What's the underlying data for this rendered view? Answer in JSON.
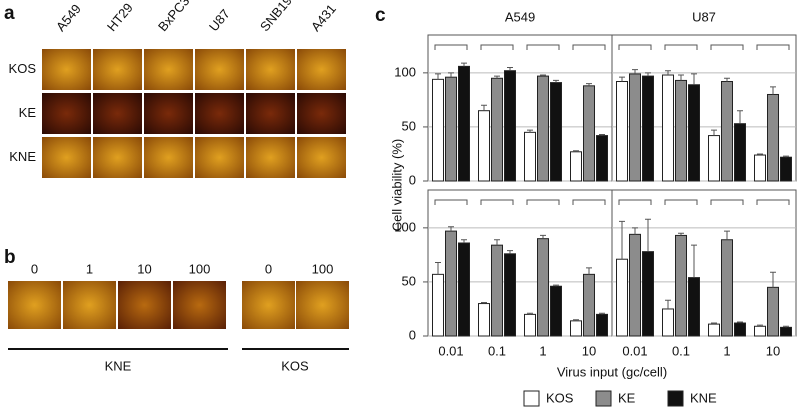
{
  "panel_labels": [
    "a",
    "b",
    "c"
  ],
  "panel_a": {
    "columns": [
      "A549",
      "HT29",
      "BxPC3",
      "U87",
      "SNB19",
      "A431"
    ],
    "rows": [
      "KOS",
      "KE",
      "KNE"
    ]
  },
  "panel_b": {
    "doses": [
      "0",
      "1",
      "10",
      "100",
      "0",
      "100"
    ],
    "groups": [
      "KNE",
      "KOS"
    ]
  },
  "figure_c": {
    "ylabel": "Cell viability (%)",
    "xlabel": "Virus input (gc/cell)",
    "legend": [
      {
        "name": "KOS",
        "color": "#ffffff"
      },
      {
        "name": "KE",
        "color": "#8c8c8c"
      },
      {
        "name": "KNE",
        "color": "#111111"
      }
    ]
  },
  "chart_data": [
    {
      "type": "bar",
      "title": "A549",
      "ylim": [
        0,
        135
      ],
      "yticks": [
        0,
        50,
        100
      ],
      "grid": true,
      "series": [
        {
          "values": [
            94,
            65,
            45,
            27
          ],
          "errors": [
            5,
            5,
            2,
            1
          ]
        },
        {
          "values": [
            96,
            95,
            97,
            88
          ],
          "errors": [
            4,
            2,
            1,
            2
          ]
        },
        {
          "values": [
            106,
            102,
            91,
            42
          ],
          "errors": [
            3,
            3,
            2,
            1
          ]
        }
      ]
    },
    {
      "type": "bar",
      "title": "U87",
      "ylim": [
        0,
        135
      ],
      "yticks": [
        0,
        50,
        100
      ],
      "grid": true,
      "series": [
        {
          "values": [
            92,
            98,
            42,
            24
          ],
          "errors": [
            4,
            4,
            5,
            1
          ]
        },
        {
          "values": [
            99,
            93,
            92,
            80
          ],
          "errors": [
            4,
            5,
            3,
            7
          ]
        },
        {
          "values": [
            97,
            89,
            53,
            22
          ],
          "errors": [
            3,
            10,
            12,
            1
          ]
        }
      ]
    },
    {
      "type": "bar",
      "categories": [
        "0.01",
        "0.1",
        "1",
        "10"
      ],
      "ylim": [
        0,
        135
      ],
      "yticks": [
        0,
        50,
        100
      ],
      "grid": true,
      "series": [
        {
          "values": [
            57,
            30,
            20,
            14
          ],
          "errors": [
            11,
            1,
            1,
            1
          ]
        },
        {
          "values": [
            97,
            84,
            90,
            57
          ],
          "errors": [
            4,
            5,
            3,
            6
          ]
        },
        {
          "values": [
            86,
            76,
            46,
            20
          ],
          "errors": [
            3,
            3,
            1,
            1
          ]
        }
      ]
    },
    {
      "type": "bar",
      "categories": [
        "0.01",
        "0.1",
        "1",
        "10"
      ],
      "ylim": [
        0,
        135
      ],
      "yticks": [
        0,
        50,
        100
      ],
      "grid": true,
      "series": [
        {
          "values": [
            71,
            25,
            11,
            9
          ],
          "errors": [
            35,
            8,
            1,
            1
          ]
        },
        {
          "values": [
            94,
            93,
            89,
            45
          ],
          "errors": [
            6,
            2,
            8,
            14
          ]
        },
        {
          "values": [
            78,
            54,
            12,
            8
          ],
          "errors": [
            30,
            30,
            1,
            1
          ]
        }
      ]
    }
  ]
}
